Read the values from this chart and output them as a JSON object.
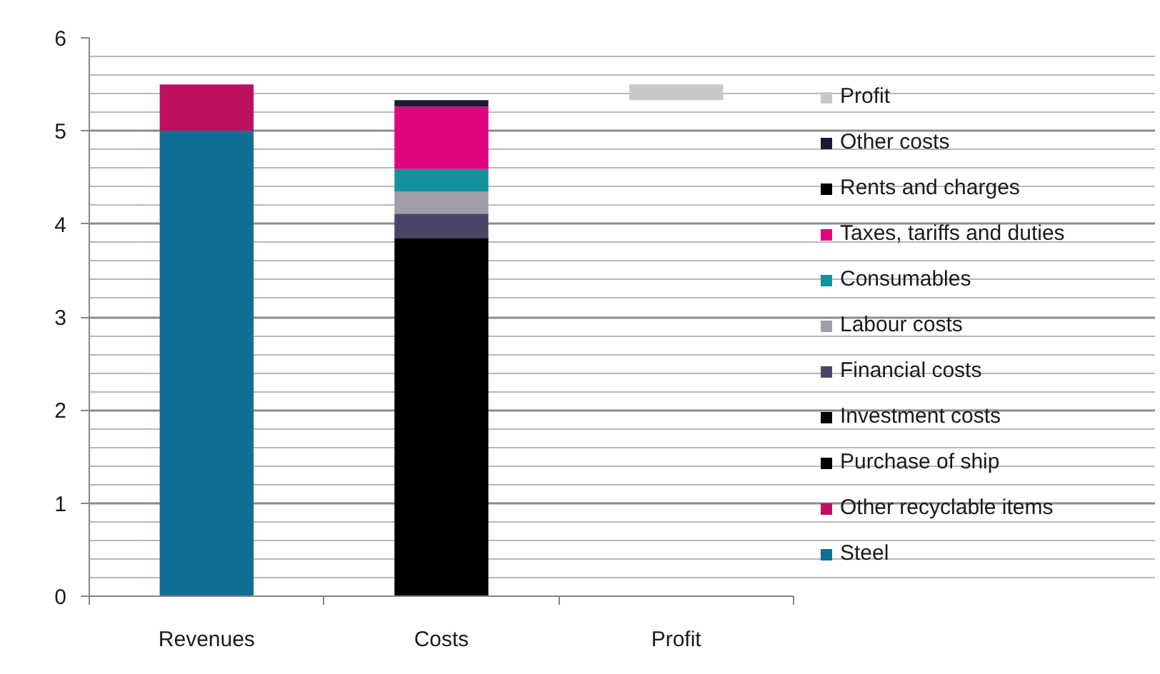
{
  "chart_data": {
    "type": "bar",
    "stacked": true,
    "categories": [
      "Revenues",
      "Costs",
      "Profit"
    ],
    "series": [
      {
        "name": "Steel",
        "color": "#0f6f96",
        "values": [
          5.0,
          null,
          null
        ]
      },
      {
        "name": "Other recyclable items",
        "color": "#be1060",
        "values": [
          0.5,
          null,
          null
        ]
      },
      {
        "name": "Purchase of ship",
        "color": "#000000",
        "values": [
          null,
          3.85,
          null
        ]
      },
      {
        "name": "Investment costs",
        "color": "#050505",
        "values": [
          null,
          null,
          null
        ]
      },
      {
        "name": "Financial costs",
        "color": "#4d4567",
        "values": [
          null,
          0.26,
          null
        ]
      },
      {
        "name": "Labour costs",
        "color": "#a29ca9",
        "values": [
          null,
          0.24,
          null
        ]
      },
      {
        "name": "Consumables",
        "color": "#13919d",
        "values": [
          null,
          0.24,
          null
        ]
      },
      {
        "name": "Taxes, tariffs and duties",
        "color": "#e0047f",
        "values": [
          null,
          0.67,
          null
        ]
      },
      {
        "name": "Rents and charges",
        "color": "#000000",
        "values": [
          null,
          null,
          null
        ]
      },
      {
        "name": "Other costs",
        "color": "#1d1838",
        "values": [
          null,
          0.07,
          null
        ]
      },
      {
        "name": "Profit",
        "color": "#c8c8c8",
        "values": [
          null,
          null,
          0.17
        ],
        "base": [
          null,
          null,
          5.33
        ]
      }
    ],
    "ylim": [
      0,
      6
    ],
    "yticks": [
      0,
      1,
      2,
      3,
      4,
      5,
      6
    ],
    "grid": "y",
    "legend": "right"
  }
}
